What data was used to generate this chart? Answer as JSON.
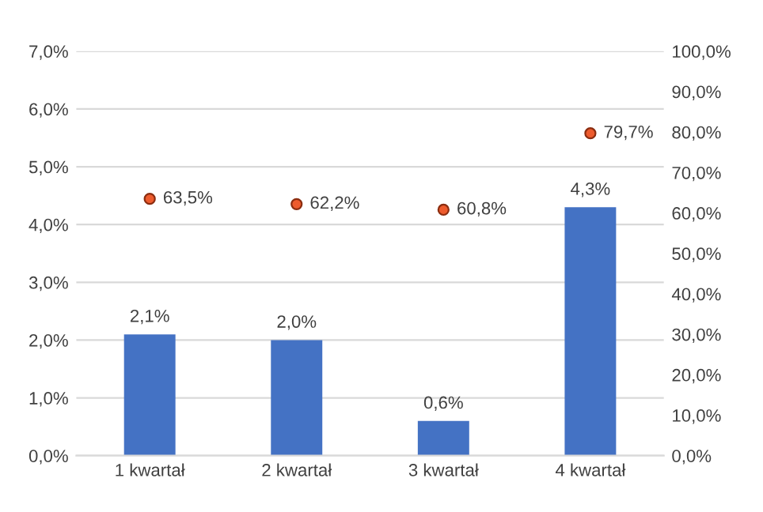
{
  "chart_data": {
    "type": "bar",
    "categories": [
      "1 kwartał",
      "2 kwartał",
      "3 kwartał",
      "4 kwartał"
    ],
    "series": [
      {
        "color": "#4472c4",
        "values": [
          2.1,
          2.0,
          0.6,
          4.3
        ],
        "value_labels": [
          "2,1%",
          "2,0%",
          "0,6%",
          "4,3%"
        ]
      },
      {
        "type": "scatter",
        "axis": "y2",
        "color": "#ed5b2d",
        "marker": "circle",
        "values": [
          63.5,
          62.2,
          60.8,
          79.7
        ],
        "value_labels": [
          "63,5%",
          "62,2%",
          "60,8%",
          "79,7%"
        ]
      }
    ],
    "ylim": [
      0,
      7
    ],
    "yticks": [
      {
        "value": 0,
        "label": "0,0%"
      },
      {
        "value": 1,
        "label": "1,0%"
      },
      {
        "value": 2,
        "label": "2,0%"
      },
      {
        "value": 3,
        "label": "3,0%"
      },
      {
        "value": 4,
        "label": "4,0%"
      },
      {
        "value": 5,
        "label": "5,0%"
      },
      {
        "value": 6,
        "label": "6,0%"
      },
      {
        "value": 7,
        "label": "7,0%"
      }
    ],
    "y2lim": [
      0,
      100
    ],
    "y2ticks": [
      {
        "value": 0,
        "label": "0,0%"
      },
      {
        "value": 10,
        "label": "10,0%"
      },
      {
        "value": 20,
        "label": "20,0%"
      },
      {
        "value": 30,
        "label": "30,0%"
      },
      {
        "value": 40,
        "label": "40,0%"
      },
      {
        "value": 50,
        "label": "50,0%"
      },
      {
        "value": 60,
        "label": "60,0%"
      },
      {
        "value": 70,
        "label": "70,0%"
      },
      {
        "value": 80,
        "label": "80,0%"
      },
      {
        "value": 90,
        "label": "90,0%"
      },
      {
        "value": 100,
        "label": "100,0%"
      }
    ],
    "grid": "y"
  }
}
